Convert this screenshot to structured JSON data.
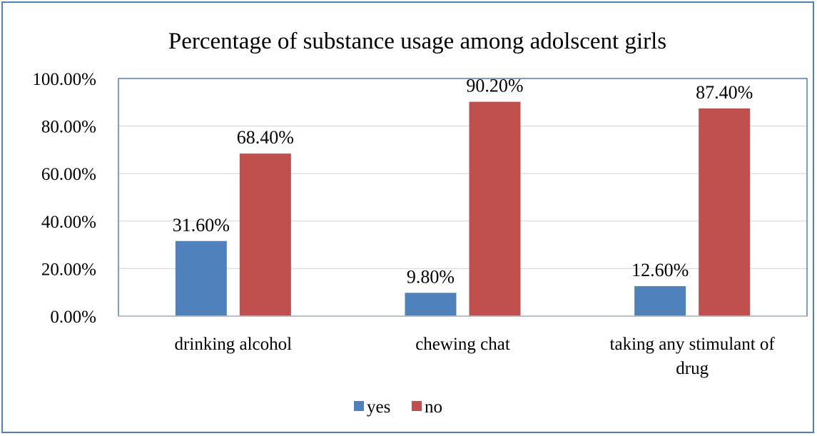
{
  "chart_data": {
    "type": "bar",
    "title": "Percentage of substance usage among adolscent girls",
    "categories": [
      "drinking alcohol",
      "chewing chat",
      "taking any stimulant of drug"
    ],
    "category_lines": [
      [
        "drinking alcohol"
      ],
      [
        "chewing chat"
      ],
      [
        "taking any stimulant of",
        "drug"
      ]
    ],
    "series": [
      {
        "name": "yes",
        "values": [
          31.6,
          9.8,
          12.6
        ],
        "labels": [
          "31.60%",
          "9.80%",
          "12.60%"
        ],
        "color": "#4f81bd"
      },
      {
        "name": "no",
        "values": [
          68.4,
          90.2,
          87.4
        ],
        "labels": [
          "68.40%",
          "90.20%",
          "87.40%"
        ],
        "color": "#c0504d"
      }
    ],
    "ylim": [
      0,
      100
    ],
    "yticks": [
      "0.00%",
      "20.00%",
      "40.00%",
      "60.00%",
      "80.00%",
      "100.00%"
    ],
    "grid": true,
    "legend": "bottom",
    "xlabel": "",
    "ylabel": ""
  }
}
